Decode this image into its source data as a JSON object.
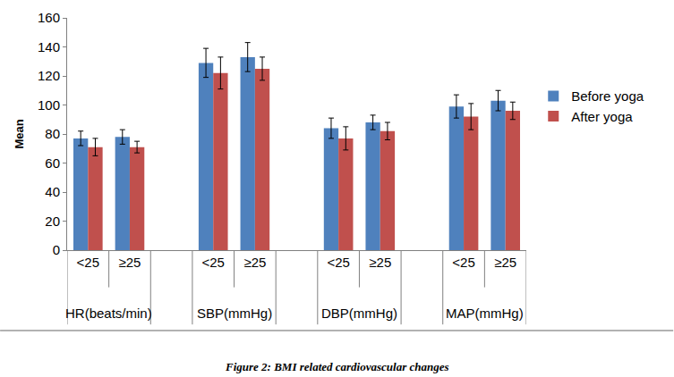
{
  "chart_data": {
    "type": "bar",
    "caption": "Figure 2: BMI related cardiovascular changes",
    "y_label": "Mean",
    "categories": [
      "<25",
      "≥25",
      "<25",
      "≥25",
      "<25",
      "≥25",
      "<25",
      "≥25"
    ],
    "category_groups": [
      "HR(beats/min)",
      "HR(beats/min)",
      "SBP(mmHg)",
      "SBP(mmHg)",
      "DBP(mmHg)",
      "DBP(mmHg)",
      "MAP(mmHg)",
      "MAP(mmHg)"
    ],
    "series": [
      {
        "name": "Before yoga",
        "color": "#4f81bd",
        "values": [
          77,
          78,
          129,
          133,
          84,
          88,
          99,
          103
        ],
        "errors": [
          5,
          5,
          10,
          10,
          7,
          5,
          8,
          7
        ]
      },
      {
        "name": "After yoga",
        "color": "#c0504d",
        "values": [
          71,
          71,
          122,
          125,
          77,
          82,
          92,
          96
        ],
        "errors": [
          6,
          4,
          11,
          8,
          8,
          6,
          9,
          6
        ]
      }
    ],
    "ylim": [
      0,
      160
    ],
    "yticks": [
      0,
      20,
      40,
      60,
      80,
      100,
      120,
      140,
      160
    ],
    "grid": false,
    "legend": "right"
  }
}
